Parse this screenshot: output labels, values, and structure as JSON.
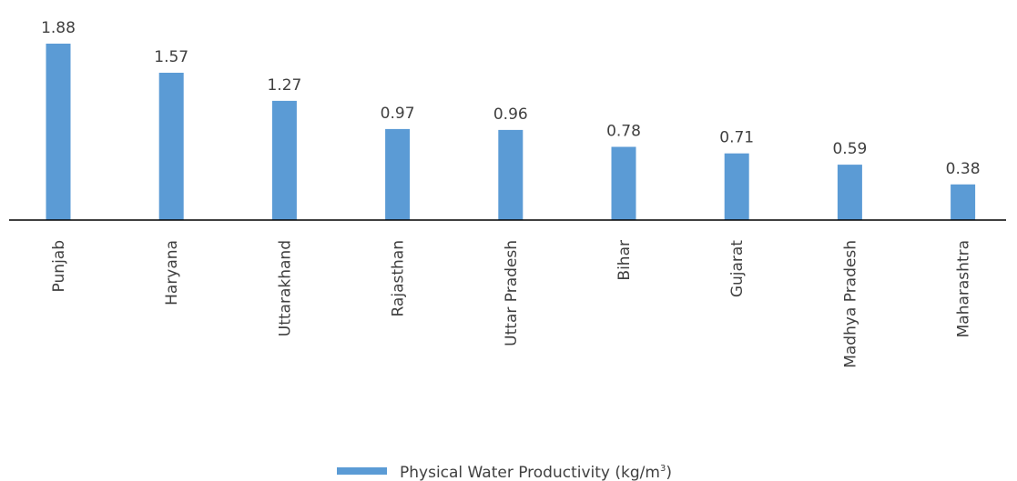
{
  "chart_data": {
    "type": "bar",
    "categories": [
      "Punjab",
      "Haryana",
      "Uttarakhand",
      "Rajasthan",
      "Uttar Pradesh",
      "Bihar",
      "Gujarat",
      "Madhya Pradesh",
      "Maharashtra"
    ],
    "series": [
      {
        "name": "Physical Water Productivity (kg/m3)",
        "values": [
          1.88,
          1.57,
          1.27,
          0.97,
          0.96,
          0.78,
          0.71,
          0.59,
          0.38
        ],
        "labels": [
          "1.88",
          "1.57",
          "1.27",
          "0.97",
          "0.96",
          "0.78",
          "0.71",
          "0.59",
          "0.38"
        ],
        "color": "#5b9bd5"
      }
    ],
    "ylim": [
      0,
      1.88
    ],
    "grid": false,
    "legend": "bottom-center"
  },
  "legend": {
    "label_main": "Physical Water Productivity (kg/m",
    "label_sup": "3",
    "label_close": ")"
  }
}
